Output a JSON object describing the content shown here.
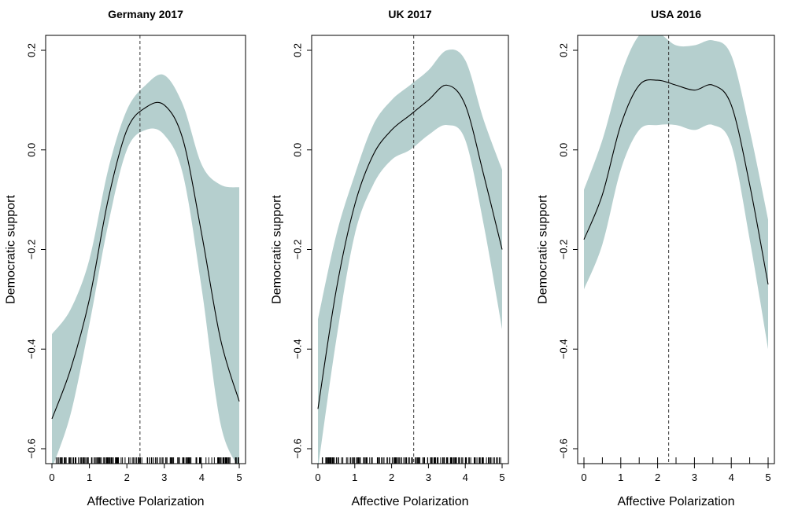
{
  "chart_data": [
    {
      "type": "line",
      "title": "Germany 2017",
      "xlabel": "Affective Polarization",
      "ylabel": "Democratic support",
      "xlim": [
        0,
        5
      ],
      "ylim": [
        -0.63,
        0.23
      ],
      "xticks": [
        "0",
        "1",
        "2",
        "3",
        "4",
        "5"
      ],
      "yticks": [
        "-0.6",
        "-0.4",
        "-0.2",
        "0.0",
        "0.2"
      ],
      "vline_x": 2.35,
      "rug": "dense",
      "x": [
        0,
        0.5,
        1,
        1.5,
        2,
        2.5,
        3,
        3.5,
        4,
        4.5,
        5
      ],
      "fit": [
        -0.54,
        -0.44,
        -0.3,
        -0.1,
        0.04,
        0.085,
        0.09,
        0.02,
        -0.17,
        -0.38,
        -0.505
      ],
      "lower": [
        -0.64,
        -0.53,
        -0.35,
        -0.15,
        0.0,
        0.04,
        0.03,
        -0.05,
        -0.28,
        -0.55,
        -0.64
      ],
      "upper": [
        -0.37,
        -0.32,
        -0.22,
        -0.04,
        0.08,
        0.13,
        0.15,
        0.09,
        -0.03,
        -0.07,
        -0.075
      ]
    },
    {
      "type": "line",
      "title": "UK 2017",
      "xlabel": "Affective Polarization",
      "ylabel": "Democratic support",
      "xlim": [
        0,
        5
      ],
      "ylim": [
        -0.63,
        0.23
      ],
      "xticks": [
        "0",
        "1",
        "2",
        "3",
        "4",
        "5"
      ],
      "yticks": [
        "-0.6",
        "-0.4",
        "-0.2",
        "0.0",
        "0.2"
      ],
      "vline_x": 2.6,
      "rug": "dense",
      "x": [
        0,
        0.5,
        1,
        1.5,
        2,
        2.5,
        3,
        3.5,
        4,
        4.5,
        5
      ],
      "fit": [
        -0.52,
        -0.28,
        -0.11,
        -0.01,
        0.04,
        0.07,
        0.1,
        0.13,
        0.09,
        -0.05,
        -0.2
      ],
      "lower": [
        -0.64,
        -0.38,
        -0.17,
        -0.07,
        -0.02,
        0.0,
        0.03,
        0.05,
        0.02,
        -0.15,
        -0.36
      ],
      "upper": [
        -0.34,
        -0.17,
        -0.05,
        0.05,
        0.1,
        0.13,
        0.16,
        0.2,
        0.18,
        0.06,
        -0.04
      ]
    },
    {
      "type": "line",
      "title": "USA 2016",
      "xlabel": "Affective Polarization",
      "ylabel": "Democratic support",
      "xlim": [
        0,
        5
      ],
      "ylim": [
        -0.63,
        0.23
      ],
      "xticks": [
        "0",
        "1",
        "2",
        "3",
        "4",
        "5"
      ],
      "yticks": [
        "-0.6",
        "-0.4",
        "-0.2",
        "0.0",
        "0.2"
      ],
      "vline_x": 2.3,
      "rug": "sparse",
      "x": [
        0,
        0.5,
        1,
        1.5,
        2,
        2.5,
        3,
        3.5,
        4,
        4.5,
        5
      ],
      "fit": [
        -0.18,
        -0.09,
        0.05,
        0.13,
        0.14,
        0.13,
        0.12,
        0.13,
        0.09,
        -0.07,
        -0.27
      ],
      "lower": [
        -0.28,
        -0.19,
        -0.04,
        0.04,
        0.05,
        0.05,
        0.04,
        0.05,
        0.01,
        -0.18,
        -0.4
      ],
      "upper": [
        -0.08,
        0.02,
        0.15,
        0.23,
        0.235,
        0.21,
        0.21,
        0.22,
        0.19,
        0.04,
        -0.14
      ]
    }
  ]
}
